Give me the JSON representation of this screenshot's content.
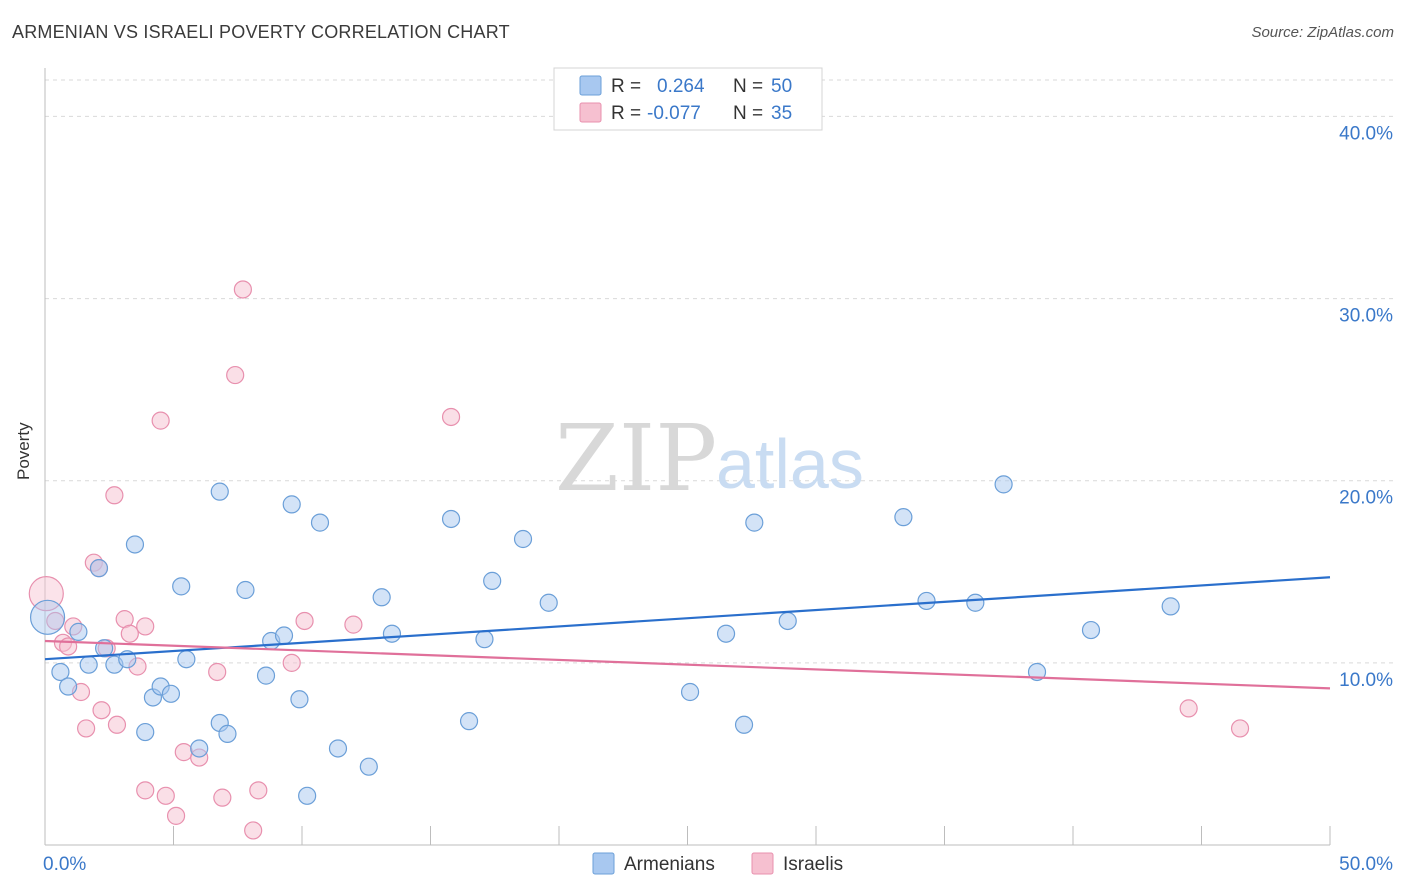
{
  "title": "ARMENIAN VS ISRAELI POVERTY CORRELATION CHART",
  "source": "Source: ZipAtlas.com",
  "watermark": {
    "zip": "ZIP",
    "atlas": "atlas"
  },
  "colors": {
    "armenian_fill": "#a8c8f0",
    "armenian_stroke": "#6b9fd8",
    "armenian_line": "#2a6fcc",
    "israeli_fill": "#f6c0d0",
    "israeli_stroke": "#e890ae",
    "israeli_line": "#e0709a",
    "axis_text": "#3a78c9",
    "grid": "#d9d9d9"
  },
  "legend": {
    "armenian": {
      "r_label": "R =",
      "r_value": "0.264",
      "n_label": "N =",
      "n_value": "50"
    },
    "israeli": {
      "r_label": "R =",
      "r_value": "-0.077",
      "n_label": "N =",
      "n_value": "35"
    }
  },
  "bottom_legend": {
    "armenians": "Armenians",
    "israelis": "Israelis"
  },
  "chart_data": {
    "type": "scatter",
    "title": "ARMENIAN VS ISRAELI POVERTY CORRELATION CHART",
    "xlabel": "",
    "ylabel": "Poverty",
    "xlim": [
      0,
      50
    ],
    "ylim": [
      0,
      42
    ],
    "x_tick_labels": [
      {
        "value": 0,
        "label": "0.0%"
      },
      {
        "value": 50,
        "label": "50.0%"
      }
    ],
    "y_tick_labels": [
      {
        "value": 10,
        "label": "10.0%"
      },
      {
        "value": 20,
        "label": "20.0%"
      },
      {
        "value": 30,
        "label": "30.0%"
      },
      {
        "value": 40,
        "label": "40.0%"
      }
    ],
    "grid": true,
    "series": [
      {
        "name": "Armenians",
        "trend": {
          "x": [
            0,
            50
          ],
          "y": [
            10.2,
            14.7
          ]
        },
        "points": [
          {
            "x": 0.1,
            "y": 12.5,
            "big": true
          },
          {
            "x": 0.6,
            "y": 9.5
          },
          {
            "x": 0.9,
            "y": 8.7
          },
          {
            "x": 1.3,
            "y": 11.7
          },
          {
            "x": 1.7,
            "y": 9.9
          },
          {
            "x": 2.1,
            "y": 15.2
          },
          {
            "x": 2.3,
            "y": 10.8
          },
          {
            "x": 2.7,
            "y": 9.9
          },
          {
            "x": 3.2,
            "y": 10.2
          },
          {
            "x": 3.5,
            "y": 16.5
          },
          {
            "x": 3.9,
            "y": 6.2
          },
          {
            "x": 4.2,
            "y": 8.1
          },
          {
            "x": 4.5,
            "y": 8.7
          },
          {
            "x": 4.9,
            "y": 8.3
          },
          {
            "x": 5.3,
            "y": 14.2
          },
          {
            "x": 5.5,
            "y": 10.2
          },
          {
            "x": 6.0,
            "y": 5.3
          },
          {
            "x": 6.8,
            "y": 19.4
          },
          {
            "x": 6.8,
            "y": 6.7
          },
          {
            "x": 7.1,
            "y": 6.1
          },
          {
            "x": 7.8,
            "y": 14.0
          },
          {
            "x": 8.6,
            "y": 9.3
          },
          {
            "x": 8.8,
            "y": 11.2
          },
          {
            "x": 9.3,
            "y": 11.5
          },
          {
            "x": 9.6,
            "y": 18.7
          },
          {
            "x": 9.9,
            "y": 8.0
          },
          {
            "x": 10.2,
            "y": 2.7
          },
          {
            "x": 10.7,
            "y": 17.7
          },
          {
            "x": 11.4,
            "y": 5.3
          },
          {
            "x": 12.6,
            "y": 4.3
          },
          {
            "x": 13.1,
            "y": 13.6
          },
          {
            "x": 13.5,
            "y": 11.6
          },
          {
            "x": 15.8,
            "y": 17.9
          },
          {
            "x": 16.5,
            "y": 6.8
          },
          {
            "x": 17.1,
            "y": 11.3
          },
          {
            "x": 17.4,
            "y": 14.5
          },
          {
            "x": 18.6,
            "y": 16.8
          },
          {
            "x": 19.6,
            "y": 13.3
          },
          {
            "x": 25.1,
            "y": 8.4
          },
          {
            "x": 26.5,
            "y": 11.6
          },
          {
            "x": 27.2,
            "y": 6.6
          },
          {
            "x": 27.6,
            "y": 17.7
          },
          {
            "x": 28.9,
            "y": 12.3
          },
          {
            "x": 33.4,
            "y": 18.0
          },
          {
            "x": 34.3,
            "y": 13.4
          },
          {
            "x": 36.2,
            "y": 13.3
          },
          {
            "x": 37.3,
            "y": 19.8
          },
          {
            "x": 38.6,
            "y": 9.5
          },
          {
            "x": 40.7,
            "y": 11.8
          },
          {
            "x": 43.8,
            "y": 13.1
          }
        ]
      },
      {
        "name": "Israelis",
        "trend": {
          "x": [
            0,
            50
          ],
          "y": [
            11.2,
            8.6
          ]
        },
        "points": [
          {
            "x": 0.05,
            "y": 13.8,
            "big": true
          },
          {
            "x": 0.4,
            "y": 12.3
          },
          {
            "x": 0.7,
            "y": 11.1
          },
          {
            "x": 0.9,
            "y": 10.9
          },
          {
            "x": 1.1,
            "y": 12.0
          },
          {
            "x": 1.4,
            "y": 8.4
          },
          {
            "x": 1.6,
            "y": 6.4
          },
          {
            "x": 1.9,
            "y": 15.5
          },
          {
            "x": 2.1,
            "y": 15.2
          },
          {
            "x": 2.2,
            "y": 7.4
          },
          {
            "x": 2.4,
            "y": 10.8
          },
          {
            "x": 2.7,
            "y": 19.2
          },
          {
            "x": 2.8,
            "y": 6.6
          },
          {
            "x": 3.1,
            "y": 12.4
          },
          {
            "x": 3.3,
            "y": 11.6
          },
          {
            "x": 3.6,
            "y": 9.8
          },
          {
            "x": 3.9,
            "y": 12.0
          },
          {
            "x": 3.9,
            "y": 3.0
          },
          {
            "x": 4.5,
            "y": 23.3
          },
          {
            "x": 4.7,
            "y": 2.7
          },
          {
            "x": 5.1,
            "y": 1.6
          },
          {
            "x": 5.4,
            "y": 5.1
          },
          {
            "x": 6.0,
            "y": 4.8
          },
          {
            "x": 6.7,
            "y": 9.5
          },
          {
            "x": 6.9,
            "y": 2.6
          },
          {
            "x": 7.4,
            "y": 25.8
          },
          {
            "x": 7.7,
            "y": 30.5
          },
          {
            "x": 8.1,
            "y": 0.8
          },
          {
            "x": 8.3,
            "y": 3.0
          },
          {
            "x": 9.6,
            "y": 10.0
          },
          {
            "x": 10.1,
            "y": 12.3
          },
          {
            "x": 12.0,
            "y": 12.1
          },
          {
            "x": 15.8,
            "y": 23.5
          },
          {
            "x": 44.5,
            "y": 7.5
          },
          {
            "x": 46.5,
            "y": 6.4
          }
        ]
      }
    ]
  }
}
